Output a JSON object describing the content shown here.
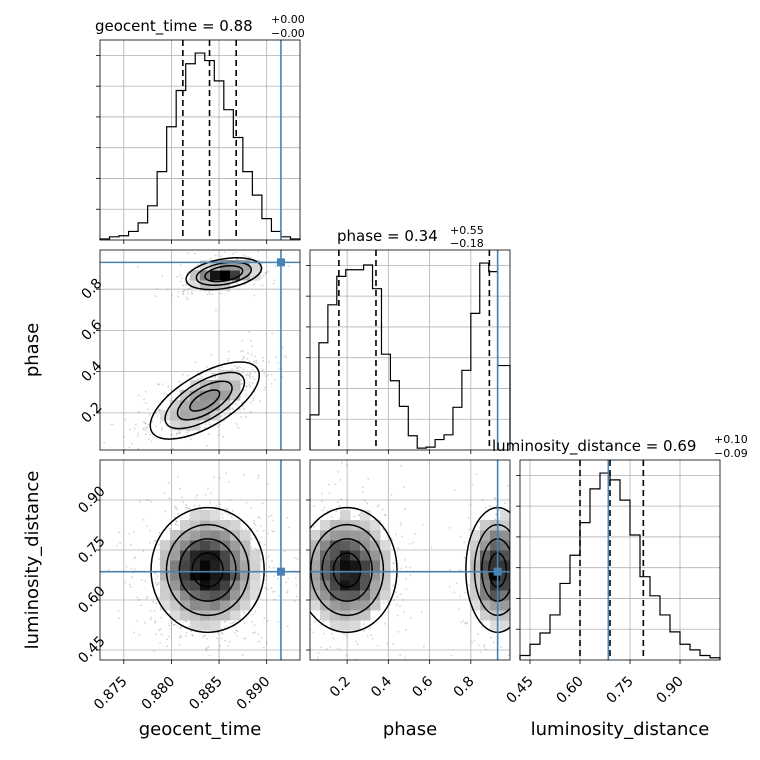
{
  "chart_data": {
    "type": "corner",
    "colors": {
      "truth": "#4682b4",
      "hist": "#000000",
      "grid": "#b0b0b0",
      "points": "#808080"
    },
    "parameters": [
      "geocent_time",
      "phase",
      "luminosity_distance"
    ],
    "truths": {
      "geocent_time": 0.8915,
      "phase": 0.93,
      "luminosity_distance": 0.685
    },
    "titles": {
      "geocent_time": {
        "text": "geocent_time = 0.88",
        "sup": "+0.00",
        "sub": "−0.00"
      },
      "phase": {
        "text": "phase = 0.34",
        "sup": "+0.55",
        "sub": "−0.18"
      },
      "luminosity_distance": {
        "text": "luminosity_distance = 0.69",
        "sup": "+0.10",
        "sub": "−0.09"
      }
    },
    "axes": {
      "geocent_time": {
        "label": "geocent_time",
        "range": [
          0.8725,
          0.8935
        ],
        "ticks": [
          "0.875",
          "0.880",
          "0.885",
          "0.890"
        ],
        "tick_values": [
          0.875,
          0.88,
          0.885,
          0.89
        ]
      },
      "phase": {
        "label": "phase",
        "range": [
          0.02,
          0.99
        ],
        "ticks": [
          "0.2",
          "0.4",
          "0.6",
          "0.8"
        ],
        "tick_values": [
          0.2,
          0.4,
          0.6,
          0.8
        ]
      },
      "luminosity_distance": {
        "label": "luminosity_distance",
        "range": [
          0.42,
          1.02
        ],
        "ticks": [
          "0.45",
          "0.60",
          "0.75",
          "0.90"
        ],
        "tick_values": [
          0.45,
          0.6,
          0.75,
          0.9
        ]
      }
    },
    "histograms": {
      "geocent_time": {
        "edges": [
          0.8725,
          0.8735,
          0.8745,
          0.8755,
          0.8765,
          0.8775,
          0.8785,
          0.8795,
          0.8805,
          0.8815,
          0.8825,
          0.8835,
          0.8845,
          0.8855,
          0.8865,
          0.8875,
          0.8885,
          0.8895,
          0.8905,
          0.8915,
          0.8925,
          0.8935
        ],
        "counts": [
          1,
          3,
          4,
          8,
          16,
          32,
          64,
          106,
          140,
          165,
          175,
          168,
          149,
          122,
          96,
          64,
          42,
          20,
          8,
          3,
          1
        ],
        "quantiles": [
          0.8812,
          0.884,
          0.8868
        ]
      },
      "phase": {
        "edges": [
          0.02,
          0.0633,
          0.1067,
          0.15,
          0.1933,
          0.2367,
          0.28,
          0.3233,
          0.3667,
          0.41,
          0.4533,
          0.4967,
          0.54,
          0.5833,
          0.6267,
          0.67,
          0.7133,
          0.7567,
          0.8,
          0.8433,
          0.8867,
          0.93,
          0.9733,
          0.99
        ],
        "counts": [
          37,
          113,
          153,
          183,
          190,
          190,
          195,
          170,
          101,
          73,
          46,
          15,
          2,
          3,
          11,
          16,
          45,
          84,
          144,
          197,
          188,
          89,
          89
        ],
        "quantiles": [
          0.16,
          0.34,
          0.89
        ]
      },
      "luminosity_distance": {
        "edges": [
          0.42,
          0.45,
          0.48,
          0.51,
          0.54,
          0.57,
          0.6,
          0.63,
          0.66,
          0.69,
          0.72,
          0.75,
          0.78,
          0.81,
          0.84,
          0.87,
          0.9,
          0.93,
          0.96,
          0.99,
          1.02
        ],
        "counts": [
          4,
          14,
          24,
          40,
          68,
          93,
          122,
          152,
          166,
          160,
          142,
          111,
          74,
          57,
          40,
          25,
          14,
          9,
          4,
          2
        ],
        "quantiles": [
          0.6,
          0.69,
          0.79
        ]
      }
    },
    "joint": [
      {
        "x": "geocent_time",
        "y": "phase",
        "blobs": [
          {
            "cx": 0.8855,
            "cy": 0.875,
            "sx": 0.0018,
            "sy": 0.035,
            "rho": 0.35,
            "w": 0.4
          },
          {
            "cx": 0.8835,
            "cy": 0.26,
            "sx": 0.0026,
            "sy": 0.085,
            "rho": 0.65,
            "w": 0.6
          }
        ]
      },
      {
        "x": "geocent_time",
        "y": "luminosity_distance",
        "blobs": [
          {
            "cx": 0.8838,
            "cy": 0.69,
            "sx": 0.0027,
            "sy": 0.085,
            "rho": 0.0,
            "w": 1.0
          }
        ]
      },
      {
        "x": "phase",
        "y": "luminosity_distance",
        "blobs": [
          {
            "cx": 0.2,
            "cy": 0.69,
            "sx": 0.11,
            "sy": 0.085,
            "rho": 0.0,
            "w": 0.62
          },
          {
            "cx": 0.93,
            "cy": 0.69,
            "sx": 0.07,
            "sy": 0.085,
            "rho": 0.0,
            "w": 0.38
          }
        ]
      }
    ]
  }
}
